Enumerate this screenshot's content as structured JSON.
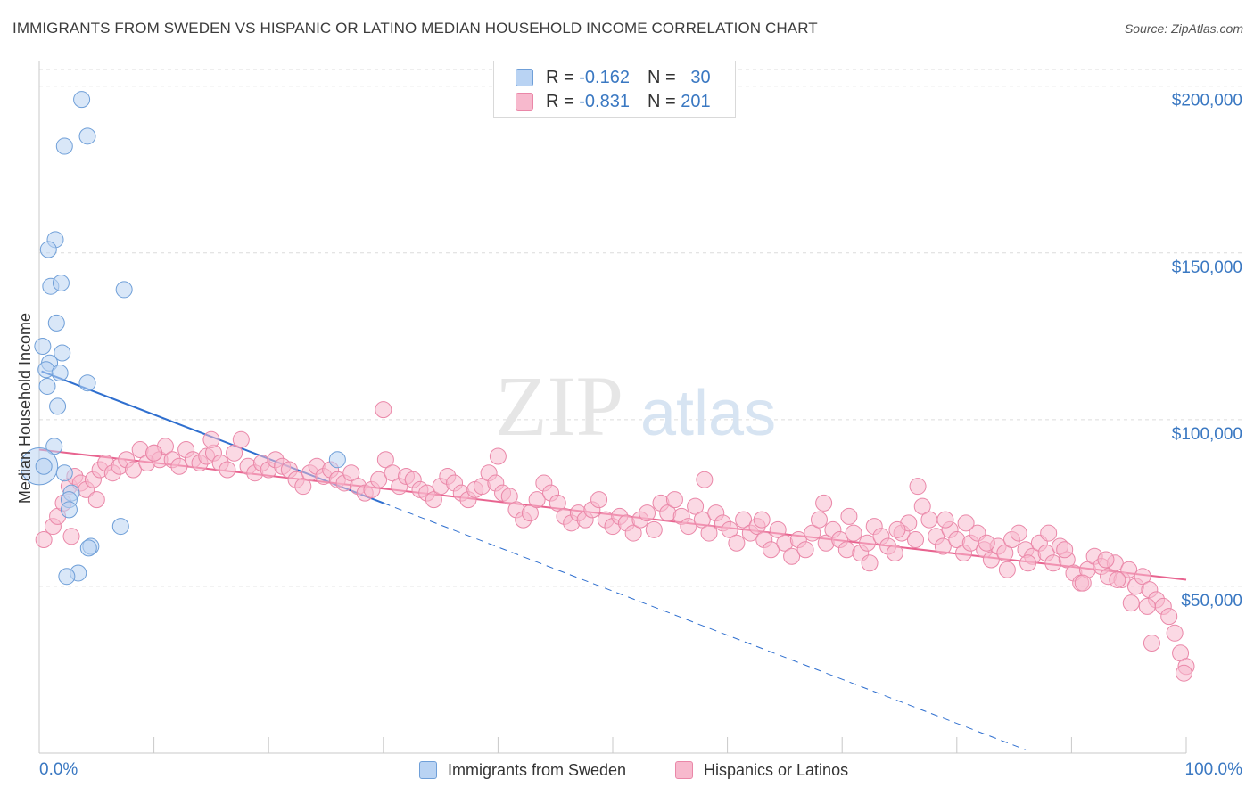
{
  "header": {
    "title": "IMMIGRANTS FROM SWEDEN VS HISPANIC OR LATINO MEDIAN HOUSEHOLD INCOME CORRELATION CHART",
    "source": "Source: ZipAtlas.com"
  },
  "watermark": {
    "zip": "ZIP",
    "atlas": "atlas"
  },
  "legend": {
    "series1": {
      "r_label": "R =",
      "r_value": "-0.162",
      "n_label": "N =",
      "n_value": "30"
    },
    "series2": {
      "r_label": "R =",
      "r_value": "-0.831",
      "n_label": "N =",
      "n_value": "201"
    }
  },
  "colors": {
    "blue_fill": "#b9d3f3",
    "blue_stroke": "#6f9fd8",
    "blue_line": "#2f6fcf",
    "pink_fill": "#f7b9cd",
    "pink_stroke": "#ea87a8",
    "pink_line": "#e8638f",
    "axis_label": "#3a78c2",
    "grid": "#dcdcdc"
  },
  "chart_data": {
    "type": "scatter",
    "title": "IMMIGRANTS FROM SWEDEN VS HISPANIC OR LATINO MEDIAN HOUSEHOLD INCOME CORRELATION CHART",
    "xlabel": "",
    "ylabel": "Median Household Income",
    "xlim": [
      0,
      100
    ],
    "ylim": [
      0,
      205000
    ],
    "x_tick_labels": [
      "0.0%",
      "100.0%"
    ],
    "y_ticks": [
      50000,
      100000,
      150000,
      200000
    ],
    "y_tick_labels": [
      "$50,000",
      "$100,000",
      "$150,000",
      "$200,000"
    ],
    "legend_position": "top-center",
    "series": [
      {
        "name": "Immigrants from Sweden",
        "color": "#6f9fd8",
        "trend": {
          "x0": 0.2,
          "y0": 114500,
          "x1": 30,
          "y1": 75000,
          "dash_to_x": 86,
          "dash_to_y": 1000
        },
        "points": [
          [
            3.7,
            196000
          ],
          [
            4.2,
            185000
          ],
          [
            2.2,
            182000
          ],
          [
            1.4,
            154000
          ],
          [
            0.8,
            151000
          ],
          [
            7.4,
            139000
          ],
          [
            1.0,
            140000
          ],
          [
            1.9,
            141000
          ],
          [
            1.5,
            129000
          ],
          [
            0.3,
            122000
          ],
          [
            2.0,
            120000
          ],
          [
            0.9,
            117000
          ],
          [
            0.6,
            115000
          ],
          [
            1.8,
            114000
          ],
          [
            0.7,
            110000
          ],
          [
            4.2,
            111000
          ],
          [
            1.6,
            104000
          ],
          [
            1.3,
            92000
          ],
          [
            26.0,
            88000
          ],
          [
            0.0,
            86000
          ],
          [
            2.2,
            84000
          ],
          [
            2.8,
            78000
          ],
          [
            2.6,
            76000
          ],
          [
            2.6,
            73000
          ],
          [
            7.1,
            68000
          ],
          [
            4.5,
            62000
          ],
          [
            4.3,
            61500
          ],
          [
            3.4,
            54000
          ],
          [
            2.4,
            53000
          ],
          [
            0.4,
            86000
          ]
        ],
        "sizes": [
          1,
          1,
          1,
          1,
          1,
          1,
          1,
          1,
          1,
          1,
          1,
          1,
          1,
          1,
          1,
          1,
          1,
          1,
          1,
          2.3,
          1,
          1,
          1,
          1,
          1,
          1,
          1,
          1,
          1,
          1
        ]
      },
      {
        "name": "Hispanics or Latinos",
        "color": "#ea87a8",
        "trend": {
          "x0": 0,
          "y0": 91000,
          "x1": 100,
          "y1": 52000
        },
        "points": [
          [
            0.4,
            64000
          ],
          [
            1.2,
            68000
          ],
          [
            1.6,
            71000
          ],
          [
            2.1,
            75000
          ],
          [
            2.6,
            80000
          ],
          [
            3.1,
            83000
          ],
          [
            3.6,
            81000
          ],
          [
            4.1,
            79000
          ],
          [
            4.7,
            82000
          ],
          [
            5.3,
            85000
          ],
          [
            5.8,
            87000
          ],
          [
            6.4,
            84000
          ],
          [
            7.0,
            86000
          ],
          [
            7.6,
            88000
          ],
          [
            8.2,
            85000
          ],
          [
            8.8,
            91000
          ],
          [
            9.4,
            87000
          ],
          [
            10.0,
            90000
          ],
          [
            10.5,
            88000
          ],
          [
            11.0,
            92000
          ],
          [
            11.6,
            88000
          ],
          [
            12.2,
            86000
          ],
          [
            12.8,
            91000
          ],
          [
            13.4,
            88000
          ],
          [
            14.0,
            87000
          ],
          [
            14.6,
            89000
          ],
          [
            15.2,
            90000
          ],
          [
            15.8,
            87000
          ],
          [
            16.4,
            85000
          ],
          [
            17.0,
            90000
          ],
          [
            17.6,
            94000
          ],
          [
            18.2,
            86000
          ],
          [
            18.8,
            84000
          ],
          [
            19.4,
            87000
          ],
          [
            20.0,
            85000
          ],
          [
            20.6,
            88000
          ],
          [
            21.2,
            86000
          ],
          [
            21.8,
            85000
          ],
          [
            22.4,
            82000
          ],
          [
            23.0,
            80000
          ],
          [
            23.6,
            84000
          ],
          [
            24.2,
            86000
          ],
          [
            24.8,
            83000
          ],
          [
            25.4,
            85000
          ],
          [
            26.0,
            82000
          ],
          [
            26.6,
            81000
          ],
          [
            27.2,
            84000
          ],
          [
            27.8,
            80000
          ],
          [
            28.4,
            78000
          ],
          [
            29.0,
            79000
          ],
          [
            29.6,
            82000
          ],
          [
            30.2,
            88000
          ],
          [
            30.8,
            84000
          ],
          [
            31.4,
            80000
          ],
          [
            32.0,
            83000
          ],
          [
            32.6,
            82000
          ],
          [
            33.2,
            79000
          ],
          [
            33.8,
            78000
          ],
          [
            34.4,
            76000
          ],
          [
            35.0,
            80000
          ],
          [
            35.6,
            83000
          ],
          [
            36.2,
            81000
          ],
          [
            36.8,
            78000
          ],
          [
            37.4,
            76000
          ],
          [
            38.0,
            79000
          ],
          [
            38.6,
            80000
          ],
          [
            39.2,
            84000
          ],
          [
            39.8,
            81000
          ],
          [
            40.4,
            78000
          ],
          [
            41.0,
            77000
          ],
          [
            41.6,
            73000
          ],
          [
            42.2,
            70000
          ],
          [
            42.8,
            72000
          ],
          [
            43.4,
            76000
          ],
          [
            44.0,
            81000
          ],
          [
            44.6,
            78000
          ],
          [
            45.2,
            75000
          ],
          [
            45.8,
            71000
          ],
          [
            46.4,
            69000
          ],
          [
            47.0,
            72000
          ],
          [
            47.6,
            70000
          ],
          [
            48.2,
            73000
          ],
          [
            48.8,
            76000
          ],
          [
            49.4,
            70000
          ],
          [
            50.0,
            68000
          ],
          [
            50.6,
            71000
          ],
          [
            51.2,
            69000
          ],
          [
            51.8,
            66000
          ],
          [
            52.4,
            70000
          ],
          [
            53.0,
            72000
          ],
          [
            53.6,
            67000
          ],
          [
            54.2,
            75000
          ],
          [
            54.8,
            72000
          ],
          [
            55.4,
            76000
          ],
          [
            56.0,
            71000
          ],
          [
            56.6,
            68000
          ],
          [
            57.2,
            74000
          ],
          [
            57.8,
            70000
          ],
          [
            58.4,
            66000
          ],
          [
            59.0,
            72000
          ],
          [
            59.6,
            69000
          ],
          [
            60.2,
            67000
          ],
          [
            60.8,
            63000
          ],
          [
            61.4,
            70000
          ],
          [
            62.0,
            66000
          ],
          [
            62.6,
            68000
          ],
          [
            63.2,
            64000
          ],
          [
            63.8,
            61000
          ],
          [
            64.4,
            67000
          ],
          [
            65.0,
            63000
          ],
          [
            65.6,
            59000
          ],
          [
            66.2,
            64000
          ],
          [
            66.8,
            61000
          ],
          [
            67.4,
            66000
          ],
          [
            68.0,
            70000
          ],
          [
            68.6,
            63000
          ],
          [
            69.2,
            67000
          ],
          [
            69.8,
            64000
          ],
          [
            70.4,
            61000
          ],
          [
            71.0,
            66000
          ],
          [
            71.6,
            60000
          ],
          [
            72.2,
            63000
          ],
          [
            72.8,
            68000
          ],
          [
            73.4,
            65000
          ],
          [
            74.0,
            62000
          ],
          [
            74.6,
            60000
          ],
          [
            75.2,
            66000
          ],
          [
            75.8,
            69000
          ],
          [
            76.4,
            64000
          ],
          [
            77.0,
            74000
          ],
          [
            77.6,
            70000
          ],
          [
            78.2,
            65000
          ],
          [
            78.8,
            62000
          ],
          [
            79.4,
            67000
          ],
          [
            80.0,
            64000
          ],
          [
            80.6,
            60000
          ],
          [
            81.2,
            63000
          ],
          [
            81.8,
            66000
          ],
          [
            82.4,
            61000
          ],
          [
            83.0,
            58000
          ],
          [
            83.6,
            62000
          ],
          [
            84.2,
            60000
          ],
          [
            84.8,
            64000
          ],
          [
            85.4,
            66000
          ],
          [
            86.0,
            61000
          ],
          [
            86.6,
            59000
          ],
          [
            87.2,
            63000
          ],
          [
            87.8,
            60000
          ],
          [
            88.4,
            57000
          ],
          [
            89.0,
            62000
          ],
          [
            89.6,
            58000
          ],
          [
            90.2,
            54000
          ],
          [
            90.8,
            51000
          ],
          [
            91.4,
            55000
          ],
          [
            92.0,
            59000
          ],
          [
            92.6,
            56000
          ],
          [
            93.2,
            53000
          ],
          [
            93.8,
            57000
          ],
          [
            94.4,
            52000
          ],
          [
            95.0,
            55000
          ],
          [
            95.6,
            50000
          ],
          [
            96.2,
            53000
          ],
          [
            96.8,
            49000
          ],
          [
            97.4,
            46000
          ],
          [
            98.0,
            44000
          ],
          [
            98.5,
            41000
          ],
          [
            99.0,
            36000
          ],
          [
            99.5,
            30000
          ],
          [
            100.0,
            26000
          ],
          [
            99.8,
            24000
          ],
          [
            97.0,
            33000
          ],
          [
            96.6,
            44000
          ],
          [
            95.2,
            45000
          ],
          [
            94.0,
            52000
          ],
          [
            93.0,
            58000
          ],
          [
            91.0,
            51000
          ],
          [
            89.4,
            61000
          ],
          [
            88.0,
            66000
          ],
          [
            86.2,
            57000
          ],
          [
            84.4,
            55000
          ],
          [
            82.6,
            63000
          ],
          [
            80.8,
            69000
          ],
          [
            79.0,
            70000
          ],
          [
            76.6,
            80000
          ],
          [
            74.8,
            67000
          ],
          [
            72.4,
            57000
          ],
          [
            70.6,
            71000
          ],
          [
            68.4,
            75000
          ],
          [
            63.0,
            70000
          ],
          [
            58.0,
            82000
          ],
          [
            40.0,
            89000
          ],
          [
            30.0,
            103000
          ],
          [
            15.0,
            94000
          ],
          [
            10.0,
            90000
          ],
          [
            5.0,
            76000
          ],
          [
            2.8,
            65000
          ]
        ]
      }
    ]
  }
}
